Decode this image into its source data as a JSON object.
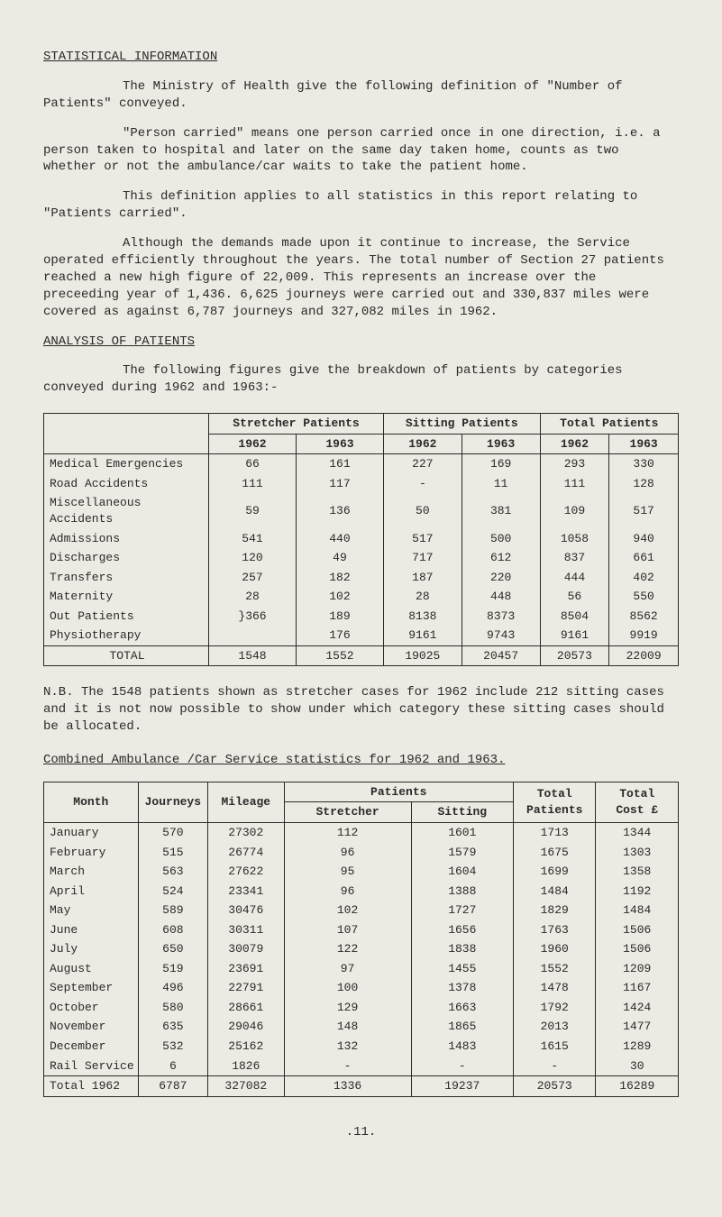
{
  "heading": "STATISTICAL INFORMATION",
  "para1": "The Ministry of Health give the following definition of \"Number of Patients\" conveyed.",
  "para2": "\"Person carried\" means one person carried once in one direction, i.e. a person taken to hospital and later on the same day taken home, counts as two whether or not the ambulance/car waits to take the patient home.",
  "para3": "This definition applies to all statistics in this report relating to \"Patients carried\".",
  "para4": "Although the demands made upon it continue to increase, the Service operated efficiently throughout the years. The total number of Section 27 patients reached a new high figure of 22,009. This represents an increase over the preceeding year of 1,436. 6,625 journeys were carried out and 330,837 miles were covered as against 6,787 journeys and 327,082 miles in 1962.",
  "analysis_heading": "ANALYSIS OF PATIENTS",
  "para5": "The following figures give the breakdown of patients by categories conveyed during 1962 and 1963:-",
  "table1": {
    "group_headers": [
      "",
      "Stretcher Patients",
      "Sitting Patients",
      "Total Patients"
    ],
    "year_headers": [
      "",
      "1962",
      "1963",
      "1962",
      "1963",
      "1962",
      "1963"
    ],
    "rows": [
      [
        "Medical Emergencies",
        "66",
        "161",
        "227",
        "169",
        "293",
        "330"
      ],
      [
        "Road Accidents",
        "111",
        "117",
        "-",
        "11",
        "111",
        "128"
      ],
      [
        "Miscellaneous Accidents",
        "59",
        "136",
        "50",
        "381",
        "109",
        "517"
      ],
      [
        "Admissions",
        "541",
        "440",
        "517",
        "500",
        "1058",
        "940"
      ],
      [
        "Discharges",
        "120",
        "49",
        "717",
        "612",
        "837",
        "661"
      ],
      [
        "Transfers",
        "257",
        "182",
        "187",
        "220",
        "444",
        "402"
      ],
      [
        "Maternity",
        "28",
        "102",
        "28",
        "448",
        "56",
        "550"
      ],
      [
        "Out Patients",
        "}366",
        "189",
        "8138",
        "8373",
        "8504",
        "8562"
      ],
      [
        "Physiotherapy",
        "",
        "176",
        "9161",
        "9743",
        "9161",
        "9919"
      ]
    ],
    "total_row": [
      "TOTAL",
      "1548",
      "1552",
      "19025",
      "20457",
      "20573",
      "22009"
    ]
  },
  "nb": "N.B.  The 1548 patients shown as stretcher cases for 1962 include 212 sitting cases and it is not now possible to show under which category these sitting cases should be allocated.",
  "combined_heading": "Combined Ambulance /Car Service statistics for 1962 and 1963.",
  "table2": {
    "headers_top": [
      "Month",
      "Journeys",
      "Mileage",
      "Patients",
      "Total",
      "Total"
    ],
    "headers_sub": [
      "",
      "",
      "",
      "Stretcher",
      "Sitting",
      "Patients",
      "Cost £"
    ],
    "rows": [
      [
        "January",
        "570",
        "27302",
        "112",
        "1601",
        "1713",
        "1344"
      ],
      [
        "February",
        "515",
        "26774",
        "96",
        "1579",
        "1675",
        "1303"
      ],
      [
        "March",
        "563",
        "27622",
        "95",
        "1604",
        "1699",
        "1358"
      ],
      [
        "April",
        "524",
        "23341",
        "96",
        "1388",
        "1484",
        "1192"
      ],
      [
        "May",
        "589",
        "30476",
        "102",
        "1727",
        "1829",
        "1484"
      ],
      [
        "June",
        "608",
        "30311",
        "107",
        "1656",
        "1763",
        "1506"
      ],
      [
        "July",
        "650",
        "30079",
        "122",
        "1838",
        "1960",
        "1506"
      ],
      [
        "August",
        "519",
        "23691",
        "97",
        "1455",
        "1552",
        "1209"
      ],
      [
        "September",
        "496",
        "22791",
        "100",
        "1378",
        "1478",
        "1167"
      ],
      [
        "October",
        "580",
        "28661",
        "129",
        "1663",
        "1792",
        "1424"
      ],
      [
        "November",
        "635",
        "29046",
        "148",
        "1865",
        "2013",
        "1477"
      ],
      [
        "December",
        "532",
        "25162",
        "132",
        "1483",
        "1615",
        "1289"
      ],
      [
        "Rail Service",
        "6",
        "1826",
        "-",
        "-",
        "-",
        "30"
      ]
    ],
    "total_row": [
      "Total 1962",
      "6787",
      "327082",
      "1336",
      "19237",
      "20573",
      "16289"
    ]
  },
  "footer": ".11."
}
